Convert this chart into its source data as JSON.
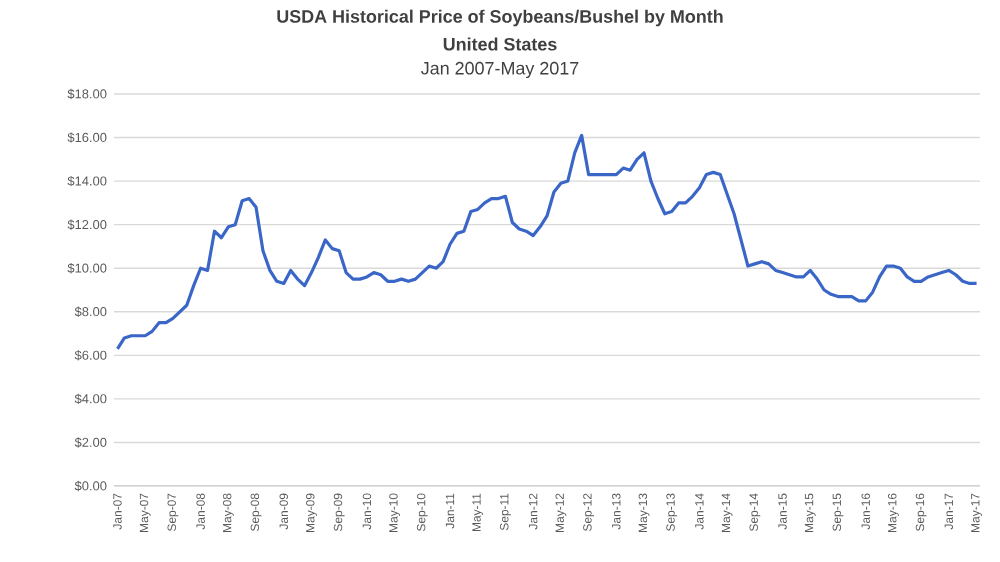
{
  "chart_data": {
    "type": "line",
    "title": "USDA Historical Price of Soybeans/Bushel by Month",
    "subtitle": "United States",
    "annotations": [
      "Jan 2007-May 2017"
    ],
    "categories": [
      "Jan-07",
      null,
      null,
      null,
      "May-07",
      null,
      null,
      null,
      "Sep-07",
      null,
      null,
      null,
      "Jan-08",
      null,
      null,
      null,
      "May-08",
      null,
      null,
      null,
      "Sep-08",
      null,
      null,
      null,
      "Jan-09",
      null,
      null,
      null,
      "May-09",
      null,
      null,
      null,
      "Sep-09",
      null,
      null,
      null,
      "Jan-10",
      null,
      null,
      null,
      "May-10",
      null,
      null,
      null,
      "Sep-10",
      null,
      null,
      null,
      "Jan-11",
      null,
      null,
      null,
      "May-11",
      null,
      null,
      null,
      "Sep-11",
      null,
      null,
      null,
      "Jan-12",
      null,
      null,
      null,
      "May-12",
      null,
      null,
      null,
      "Sep-12",
      null,
      null,
      null,
      "Jan-13",
      null,
      null,
      null,
      "May-13",
      null,
      null,
      null,
      "Sep-13",
      null,
      null,
      null,
      "Jan-14",
      null,
      null,
      null,
      "May-14",
      null,
      null,
      null,
      "Sep-14",
      null,
      null,
      null,
      "Jan-15",
      null,
      null,
      null,
      "May-15",
      null,
      null,
      null,
      "Sep-15",
      null,
      null,
      null,
      "Jan-16",
      null,
      null,
      null,
      "May-16",
      null,
      null,
      null,
      "Sep-16",
      null,
      null,
      null,
      "Jan-17",
      null,
      null,
      null,
      "May-17"
    ],
    "values": [
      6.3,
      6.8,
      6.9,
      6.9,
      6.9,
      7.1,
      7.5,
      7.5,
      7.7,
      8.0,
      8.3,
      9.2,
      10.0,
      9.9,
      11.7,
      11.4,
      11.9,
      12.0,
      13.1,
      13.2,
      12.8,
      10.8,
      9.9,
      9.4,
      9.3,
      9.9,
      9.5,
      9.2,
      9.8,
      10.5,
      11.3,
      10.9,
      10.8,
      9.8,
      9.5,
      9.5,
      9.6,
      9.8,
      9.7,
      9.4,
      9.4,
      9.5,
      9.4,
      9.5,
      9.8,
      10.1,
      10.0,
      10.3,
      11.1,
      11.6,
      11.7,
      12.6,
      12.7,
      13.0,
      13.2,
      13.2,
      13.3,
      12.1,
      11.8,
      11.7,
      11.5,
      11.9,
      12.4,
      13.5,
      13.9,
      14.0,
      15.3,
      16.1,
      14.3,
      14.3,
      14.3,
      14.3,
      14.3,
      14.6,
      14.5,
      15.0,
      15.3,
      14.0,
      13.2,
      12.5,
      12.6,
      13.0,
      13.0,
      13.3,
      13.7,
      14.3,
      14.4,
      14.3,
      13.4,
      12.5,
      11.3,
      10.1,
      10.2,
      10.3,
      10.2,
      9.9,
      9.8,
      9.7,
      9.6,
      9.6,
      9.9,
      9.5,
      9.0,
      8.8,
      8.7,
      8.7,
      8.7,
      8.5,
      8.5,
      8.9,
      9.6,
      10.1,
      10.1,
      10.0,
      9.6,
      9.4,
      9.4,
      9.6,
      9.7,
      9.8,
      9.9,
      9.7,
      9.4,
      9.3,
      9.3
    ],
    "color": "#3a67c7",
    "ylim": [
      0,
      18
    ],
    "yticks": [
      {
        "value": 0,
        "label": "$0.00"
      },
      {
        "value": 2,
        "label": "$2.00"
      },
      {
        "value": 4,
        "label": "$4.00"
      },
      {
        "value": 6,
        "label": "$6.00"
      },
      {
        "value": 8,
        "label": "$8.00"
      },
      {
        "value": 10,
        "label": "$10.00"
      },
      {
        "value": 12,
        "label": "$12.00"
      },
      {
        "value": 14,
        "label": "$14.00"
      },
      {
        "value": 16,
        "label": "$16.00"
      },
      {
        "value": 18,
        "label": "$18.00"
      }
    ],
    "grid": "y",
    "marker": "none",
    "line_style": "solid"
  }
}
